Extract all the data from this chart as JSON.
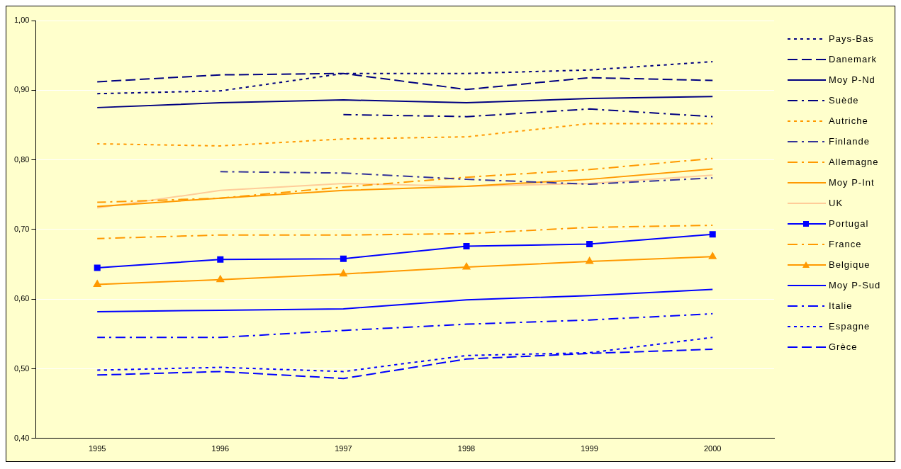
{
  "chart_data": {
    "type": "line",
    "categories": [
      "1995",
      "1996",
      "1997",
      "1998",
      "1999",
      "2000"
    ],
    "ylim": [
      0.4,
      1.0
    ],
    "yticks": [
      {
        "value": 0.4,
        "label": "0,40"
      },
      {
        "value": 0.5,
        "label": "0,50"
      },
      {
        "value": 0.6,
        "label": "0,60"
      },
      {
        "value": 0.7,
        "label": "0,70"
      },
      {
        "value": 0.8,
        "label": "0,80"
      },
      {
        "value": 0.9,
        "label": "0,90"
      },
      {
        "value": 1.0,
        "label": "1,00"
      }
    ],
    "grid": "y",
    "legend": "right",
    "marker": "none",
    "series": [
      {
        "name": "Pays-Bas",
        "color": "#000080",
        "line_style": "dotted",
        "values": [
          0.895,
          0.899,
          0.924,
          0.924,
          0.929,
          0.941
        ]
      },
      {
        "name": "Danemark",
        "color": "#000080",
        "line_style": "dashed",
        "values": [
          0.912,
          0.922,
          0.924,
          0.901,
          0.918,
          0.914
        ]
      },
      {
        "name": "Moy P-Nd",
        "color": "#000080",
        "line_style": "solid",
        "values": [
          0.875,
          0.882,
          0.886,
          0.882,
          0.888,
          0.891
        ]
      },
      {
        "name": "Suède",
        "color": "#000080",
        "line_style": "dashdot",
        "values": [
          null,
          null,
          0.865,
          0.862,
          0.873,
          0.862
        ]
      },
      {
        "name": "Autriche",
        "color": "#ff9900",
        "line_style": "dotted",
        "values": [
          0.823,
          0.82,
          0.83,
          0.833,
          0.852,
          0.852
        ]
      },
      {
        "name": "Finlande",
        "color": "#333399",
        "line_style": "dashdot",
        "values": [
          null,
          0.783,
          0.781,
          0.772,
          0.765,
          0.774
        ]
      },
      {
        "name": "Allemagne",
        "color": "#ff9900",
        "line_style": "dashdot",
        "values": [
          0.739,
          0.745,
          0.761,
          0.775,
          0.786,
          0.802
        ]
      },
      {
        "name": "Moy P-Int",
        "color": "#ff9900",
        "line_style": "solid",
        "values": [
          0.733,
          0.745,
          0.756,
          0.762,
          0.772,
          0.787
        ]
      },
      {
        "name": "UK",
        "color": "#ffcc99",
        "line_style": "solid",
        "values": [
          0.731,
          0.756,
          0.766,
          0.762,
          0.766,
          0.778
        ]
      },
      {
        "name": "Portugal",
        "color": "#0000ff",
        "line_style": "solid",
        "marker": "square",
        "values": [
          0.645,
          0.657,
          0.658,
          0.676,
          0.679,
          0.693
        ]
      },
      {
        "name": "France",
        "color": "#ff9900",
        "line_style": "dashdot",
        "values": [
          0.687,
          0.692,
          0.692,
          0.694,
          0.703,
          0.706
        ]
      },
      {
        "name": "Belgique",
        "color": "#ff9900",
        "line_style": "solid",
        "marker": "triangle",
        "values": [
          0.621,
          0.628,
          0.636,
          0.646,
          0.654,
          0.661
        ]
      },
      {
        "name": "Moy P-Sud",
        "color": "#0000ff",
        "line_style": "solid",
        "values": [
          0.582,
          0.584,
          0.586,
          0.599,
          0.605,
          0.614
        ]
      },
      {
        "name": "Italie",
        "color": "#0000ff",
        "line_style": "dashdot",
        "values": [
          0.545,
          0.545,
          0.555,
          0.564,
          0.57,
          0.579
        ]
      },
      {
        "name": "Espagne",
        "color": "#0000ff",
        "line_style": "dotted",
        "values": [
          0.498,
          0.502,
          0.496,
          0.519,
          0.523,
          0.545
        ]
      },
      {
        "name": "Grèce",
        "color": "#0000ff",
        "line_style": "dashed",
        "values": [
          0.491,
          0.496,
          0.486,
          0.514,
          0.522,
          0.528
        ]
      }
    ]
  }
}
